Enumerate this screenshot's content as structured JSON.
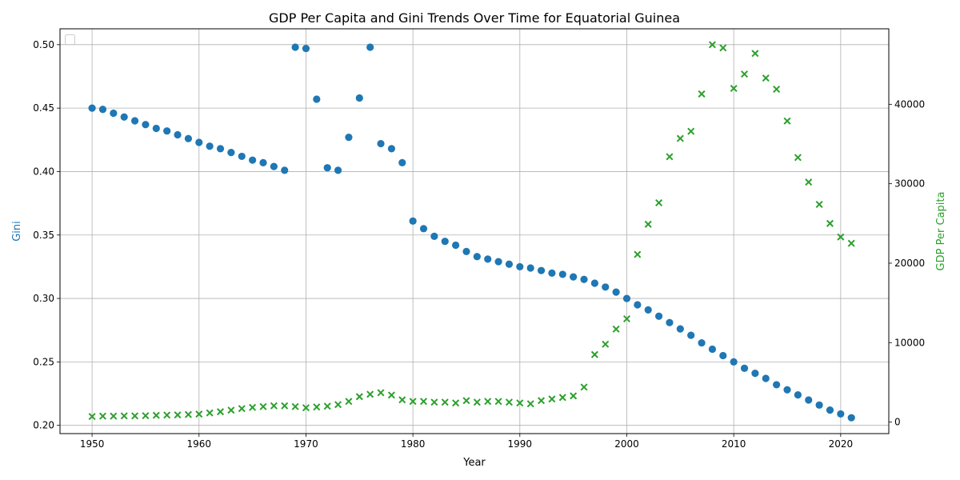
{
  "chart_data": {
    "type": "scatter",
    "title": "GDP Per Capita and Gini Trends Over Time for Equatorial Guinea",
    "xlabel": "Year",
    "ylabel_left": "Gini",
    "ylabel_right": "GDP Per Capita",
    "xlim": [
      1947,
      2024.5
    ],
    "ylim_left": [
      0.1935,
      0.5125
    ],
    "ylim_right": [
      -1450,
      49500
    ],
    "x_ticks": [
      1950,
      1960,
      1970,
      1980,
      1990,
      2000,
      2010,
      2020
    ],
    "y_ticks_left": [
      0.2,
      0.25,
      0.3,
      0.35,
      0.4,
      0.45,
      0.5
    ],
    "y_ticks_right": [
      0,
      10000,
      20000,
      30000,
      40000
    ],
    "grid": true,
    "legend": "top-left",
    "colors": {
      "gini": "#1f77b4",
      "gdp": "#2ca02c"
    },
    "series": [
      {
        "axis": "left",
        "marker": "circle",
        "x": [
          1950,
          1951,
          1952,
          1953,
          1954,
          1955,
          1956,
          1957,
          1958,
          1959,
          1960,
          1961,
          1962,
          1963,
          1964,
          1965,
          1966,
          1967,
          1968,
          1969,
          1970,
          1971,
          1972,
          1973,
          1974,
          1975,
          1976,
          1977,
          1978,
          1979,
          1980,
          1981,
          1982,
          1983,
          1984,
          1985,
          1986,
          1987,
          1988,
          1989,
          1990,
          1991,
          1992,
          1993,
          1994,
          1995,
          1996,
          1997,
          1998,
          1999,
          2000,
          2001,
          2002,
          2003,
          2004,
          2005,
          2006,
          2007,
          2008,
          2009,
          2010,
          2011,
          2012,
          2013,
          2014,
          2015,
          2016,
          2017,
          2018,
          2019,
          2020,
          2021
        ],
        "values": [
          0.45,
          0.449,
          0.446,
          0.443,
          0.44,
          0.437,
          0.434,
          0.432,
          0.429,
          0.426,
          0.423,
          0.42,
          0.418,
          0.415,
          0.412,
          0.409,
          0.407,
          0.404,
          0.401,
          0.498,
          0.497,
          0.457,
          0.403,
          0.401,
          0.427,
          0.458,
          0.498,
          0.422,
          0.418,
          0.407,
          0.361,
          0.355,
          0.349,
          0.345,
          0.342,
          0.337,
          0.333,
          0.331,
          0.329,
          0.327,
          0.325,
          0.324,
          0.322,
          0.32,
          0.319,
          0.317,
          0.315,
          0.312,
          0.309,
          0.305,
          0.3,
          0.295,
          0.291,
          0.286,
          0.281,
          0.276,
          0.271,
          0.265,
          0.26,
          0.255,
          0.25,
          0.245,
          0.241,
          0.237,
          0.232,
          0.228,
          0.224,
          0.22,
          0.216,
          0.212,
          0.209,
          0.206
        ]
      },
      {
        "axis": "right",
        "marker": "x",
        "x": [
          1950,
          1951,
          1952,
          1953,
          1954,
          1955,
          1956,
          1957,
          1958,
          1959,
          1960,
          1961,
          1962,
          1963,
          1964,
          1965,
          1966,
          1967,
          1968,
          1969,
          1970,
          1971,
          1972,
          1973,
          1974,
          1975,
          1976,
          1977,
          1978,
          1979,
          1980,
          1981,
          1982,
          1983,
          1984,
          1985,
          1986,
          1987,
          1988,
          1989,
          1990,
          1991,
          1992,
          1993,
          1994,
          1995,
          1996,
          1997,
          1998,
          1999,
          2000,
          2001,
          2002,
          2003,
          2004,
          2005,
          2006,
          2007,
          2008,
          2009,
          2010,
          2011,
          2012,
          2013,
          2014,
          2015,
          2016,
          2017,
          2018,
          2019,
          2020,
          2021
        ],
        "values": [
          700,
          750,
          750,
          780,
          780,
          800,
          850,
          880,
          900,
          950,
          1000,
          1150,
          1300,
          1500,
          1700,
          1850,
          1950,
          2050,
          2050,
          1950,
          1800,
          1900,
          2000,
          2200,
          2600,
          3200,
          3500,
          3700,
          3400,
          2800,
          2600,
          2600,
          2500,
          2500,
          2400,
          2700,
          2500,
          2600,
          2600,
          2500,
          2400,
          2300,
          2700,
          2900,
          3100,
          3300,
          4400,
          8500,
          9800,
          11700,
          13000,
          21100,
          24900,
          27600,
          33400,
          35700,
          36600,
          41300,
          47500,
          47100,
          42000,
          43800,
          46400,
          43300,
          41900,
          37900,
          33300,
          30200,
          27400,
          25000,
          23300,
          22500
        ]
      }
    ]
  }
}
